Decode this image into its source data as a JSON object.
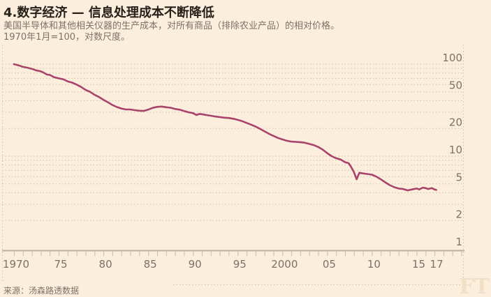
{
  "header": {
    "title": "4.数字经济 — 信息处理成本不断降低",
    "subtitle_line1": "美国半导体和其他相关仪器的生产成本，对所有商品（排除农业产品）的相对价格。",
    "subtitle_line2": "1970年1月=100，对数尺度。"
  },
  "footer": {
    "source": "来源：汤森路透数据",
    "watermark": "FT"
  },
  "colors": {
    "background": "#fbeedd",
    "line": "#a8436b",
    "grid_dots": "#cfc1ab",
    "axis": "#bcae9c",
    "muted_text": "#7c7365",
    "title_text": "#262019",
    "watermark": "#f1dfc7"
  },
  "chart_data": {
    "type": "line",
    "title": "4.数字经济 — 信息处理成本不断降低",
    "y_axis": {
      "scale": "log",
      "range": [
        1,
        100
      ],
      "labeled_values": [
        100,
        50,
        20,
        10,
        5,
        2,
        1
      ],
      "gridline_values": [
        100,
        90,
        80,
        70,
        60,
        50,
        40,
        30,
        20,
        10,
        9,
        8,
        7,
        6,
        5,
        4,
        3,
        2
      ]
    },
    "x_axis": {
      "tick_start": 1970,
      "tick_end": 2020,
      "labels": [
        {
          "year": 1970,
          "label": "1970"
        },
        {
          "year": 1975,
          "label": "75"
        },
        {
          "year": 1980,
          "label": "80"
        },
        {
          "year": 1985,
          "label": "85"
        },
        {
          "year": 1990,
          "label": "90"
        },
        {
          "year": 1995,
          "label": "95"
        },
        {
          "year": 2000,
          "label": "2000"
        },
        {
          "year": 2005,
          "label": "05"
        },
        {
          "year": 2010,
          "label": "10"
        },
        {
          "year": 2015,
          "label": "15"
        },
        {
          "year": 2017,
          "label": "17"
        }
      ]
    },
    "series": {
      "points": [
        [
          1970,
          100
        ],
        [
          1970.5,
          97
        ],
        [
          1971,
          93.5
        ],
        [
          1971.5,
          91.5
        ],
        [
          1972,
          89
        ],
        [
          1972.5,
          85.5
        ],
        [
          1973,
          83.5
        ],
        [
          1973.3,
          81
        ],
        [
          1973.7,
          77
        ],
        [
          1974,
          76.5
        ],
        [
          1974.5,
          72
        ],
        [
          1975,
          70
        ],
        [
          1975.5,
          68.5
        ],
        [
          1976,
          65
        ],
        [
          1976.5,
          63
        ],
        [
          1977,
          60
        ],
        [
          1977.5,
          56.5
        ],
        [
          1978,
          52.5
        ],
        [
          1978.5,
          50
        ],
        [
          1979,
          46.5
        ],
        [
          1979.5,
          44
        ],
        [
          1980,
          41
        ],
        [
          1980.5,
          38.5
        ],
        [
          1981,
          36
        ],
        [
          1981.5,
          34.2
        ],
        [
          1982,
          33
        ],
        [
          1982.5,
          32.2
        ],
        [
          1983,
          32.2
        ],
        [
          1983.5,
          31.6
        ],
        [
          1984,
          31.2
        ],
        [
          1984.5,
          31
        ],
        [
          1985,
          32
        ],
        [
          1985.5,
          33.5
        ],
        [
          1986,
          34.3
        ],
        [
          1986.5,
          34.6
        ],
        [
          1987,
          34
        ],
        [
          1987.5,
          33.6
        ],
        [
          1988,
          32.6
        ],
        [
          1988.5,
          32
        ],
        [
          1989,
          31
        ],
        [
          1989.5,
          30
        ],
        [
          1990,
          29.4
        ],
        [
          1990.4,
          28
        ],
        [
          1990.7,
          28.8
        ],
        [
          1991,
          28.6
        ],
        [
          1991.5,
          28
        ],
        [
          1992,
          27.5
        ],
        [
          1992.5,
          27
        ],
        [
          1993,
          26.6
        ],
        [
          1993.5,
          26.2
        ],
        [
          1994,
          26
        ],
        [
          1994.5,
          25.5
        ],
        [
          1995,
          24.8
        ],
        [
          1995.5,
          24
        ],
        [
          1996,
          23
        ],
        [
          1996.5,
          22
        ],
        [
          1997,
          21
        ],
        [
          1997.5,
          19.8
        ],
        [
          1998,
          18.6
        ],
        [
          1998.5,
          17.5
        ],
        [
          1999,
          16.6
        ],
        [
          1999.5,
          15.8
        ],
        [
          2000,
          15.2
        ],
        [
          2000.5,
          14.7
        ],
        [
          2001,
          14.4
        ],
        [
          2001.5,
          14.3
        ],
        [
          2002,
          14.2
        ],
        [
          2002.5,
          14
        ],
        [
          2003,
          13.6
        ],
        [
          2003.5,
          13.2
        ],
        [
          2004,
          12.6
        ],
        [
          2004.5,
          11.8
        ],
        [
          2005,
          10.8
        ],
        [
          2005.5,
          10
        ],
        [
          2006,
          9.5
        ],
        [
          2006.5,
          9.2
        ],
        [
          2007,
          8.6
        ],
        [
          2007.4,
          8.4
        ],
        [
          2007.7,
          7.6
        ],
        [
          2008,
          6.7
        ],
        [
          2008.3,
          5.6
        ],
        [
          2008.6,
          6.6
        ],
        [
          2009,
          6.5
        ],
        [
          2009.5,
          6.4
        ],
        [
          2010,
          6.3
        ],
        [
          2010.5,
          6
        ],
        [
          2011,
          5.6
        ],
        [
          2011.5,
          5.2
        ],
        [
          2012,
          4.85
        ],
        [
          2012.5,
          4.6
        ],
        [
          2013,
          4.45
        ],
        [
          2013.5,
          4.4
        ],
        [
          2014,
          4.25
        ],
        [
          2014.5,
          4.35
        ],
        [
          2015,
          4.45
        ],
        [
          2015.3,
          4.35
        ],
        [
          2015.7,
          4.55
        ],
        [
          2016,
          4.5
        ],
        [
          2016.3,
          4.4
        ],
        [
          2016.7,
          4.5
        ],
        [
          2017,
          4.35
        ],
        [
          2017.2,
          4.3
        ]
      ]
    }
  }
}
